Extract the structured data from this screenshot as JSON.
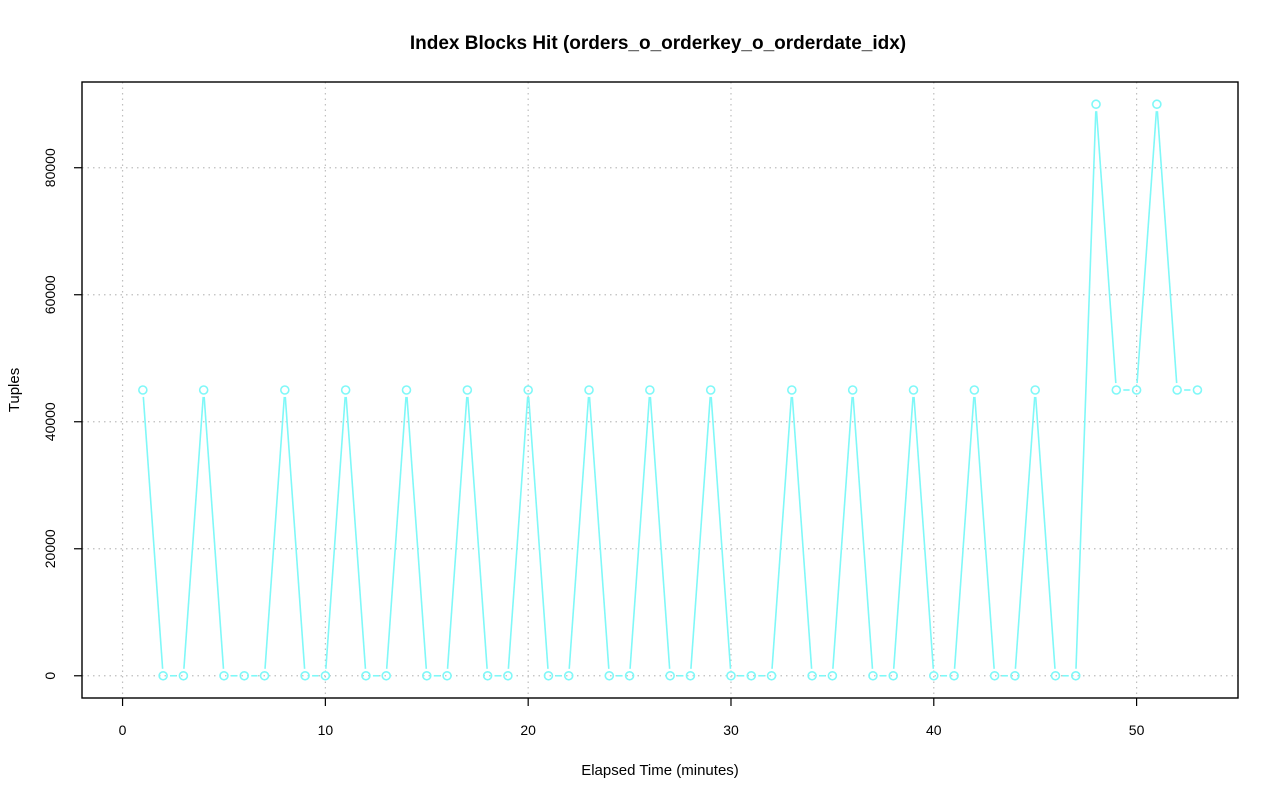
{
  "chart_data": {
    "type": "line",
    "title": "Index Blocks Hit (orders_o_orderkey_o_orderdate_idx)",
    "xlabel": "Elapsed Time (minutes)",
    "ylabel": "Tuples",
    "xlim": [
      -2,
      55
    ],
    "ylim": [
      -3500,
      93500
    ],
    "xticks": [
      0,
      10,
      20,
      30,
      40,
      50
    ],
    "yticks": [
      0,
      20000,
      40000,
      60000,
      80000
    ],
    "grid": true,
    "series": [
      {
        "color": "#7ff8f8",
        "x": [
          1,
          2,
          3,
          4,
          5,
          6,
          7,
          8,
          9,
          10,
          11,
          12,
          13,
          14,
          15,
          16,
          17,
          18,
          19,
          20,
          21,
          22,
          23,
          24,
          25,
          26,
          27,
          28,
          29,
          30,
          31,
          32,
          33,
          34,
          35,
          36,
          37,
          38,
          39,
          40,
          41,
          42,
          43,
          44,
          45,
          46,
          47,
          48,
          49,
          50,
          51,
          52,
          53
        ],
        "values": [
          45000,
          0,
          0,
          45000,
          0,
          0,
          0,
          45000,
          0,
          0,
          45000,
          0,
          0,
          45000,
          0,
          0,
          45000,
          0,
          0,
          45000,
          0,
          0,
          45000,
          0,
          0,
          45000,
          0,
          0,
          45000,
          0,
          0,
          0,
          45000,
          0,
          0,
          45000,
          0,
          0,
          45000,
          0,
          0,
          45000,
          0,
          0,
          45000,
          0,
          0,
          90000,
          45000,
          45000,
          90000,
          45000,
          45000
        ]
      }
    ]
  }
}
